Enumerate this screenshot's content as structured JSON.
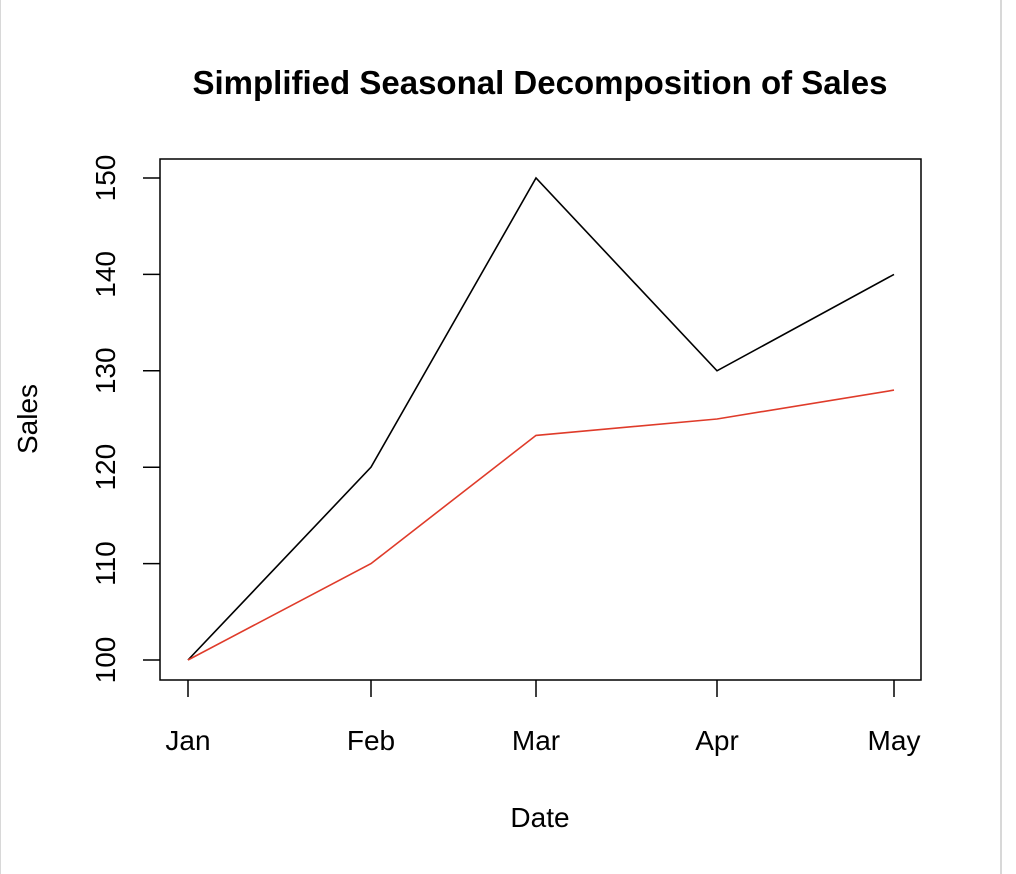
{
  "chart_data": {
    "type": "line",
    "title": "Simplified Seasonal Decomposition of Sales",
    "xlabel": "Date",
    "ylabel": "Sales",
    "categories": [
      "Jan",
      "Feb",
      "Mar",
      "Apr",
      "May"
    ],
    "x_dates": [
      "2023-01-01",
      "2023-02-01",
      "2023-03-01",
      "2023-04-01",
      "2023-05-01"
    ],
    "series": [
      {
        "values": [
          100,
          120,
          150,
          130,
          140
        ],
        "color": "#000000"
      },
      {
        "values": [
          100,
          110,
          123.3,
          125,
          128
        ],
        "color": "#df3b2a"
      }
    ],
    "yticks": [
      100,
      110,
      120,
      130,
      140,
      150
    ],
    "ylim": [
      98,
      152
    ],
    "grid": false,
    "legend": "none"
  }
}
